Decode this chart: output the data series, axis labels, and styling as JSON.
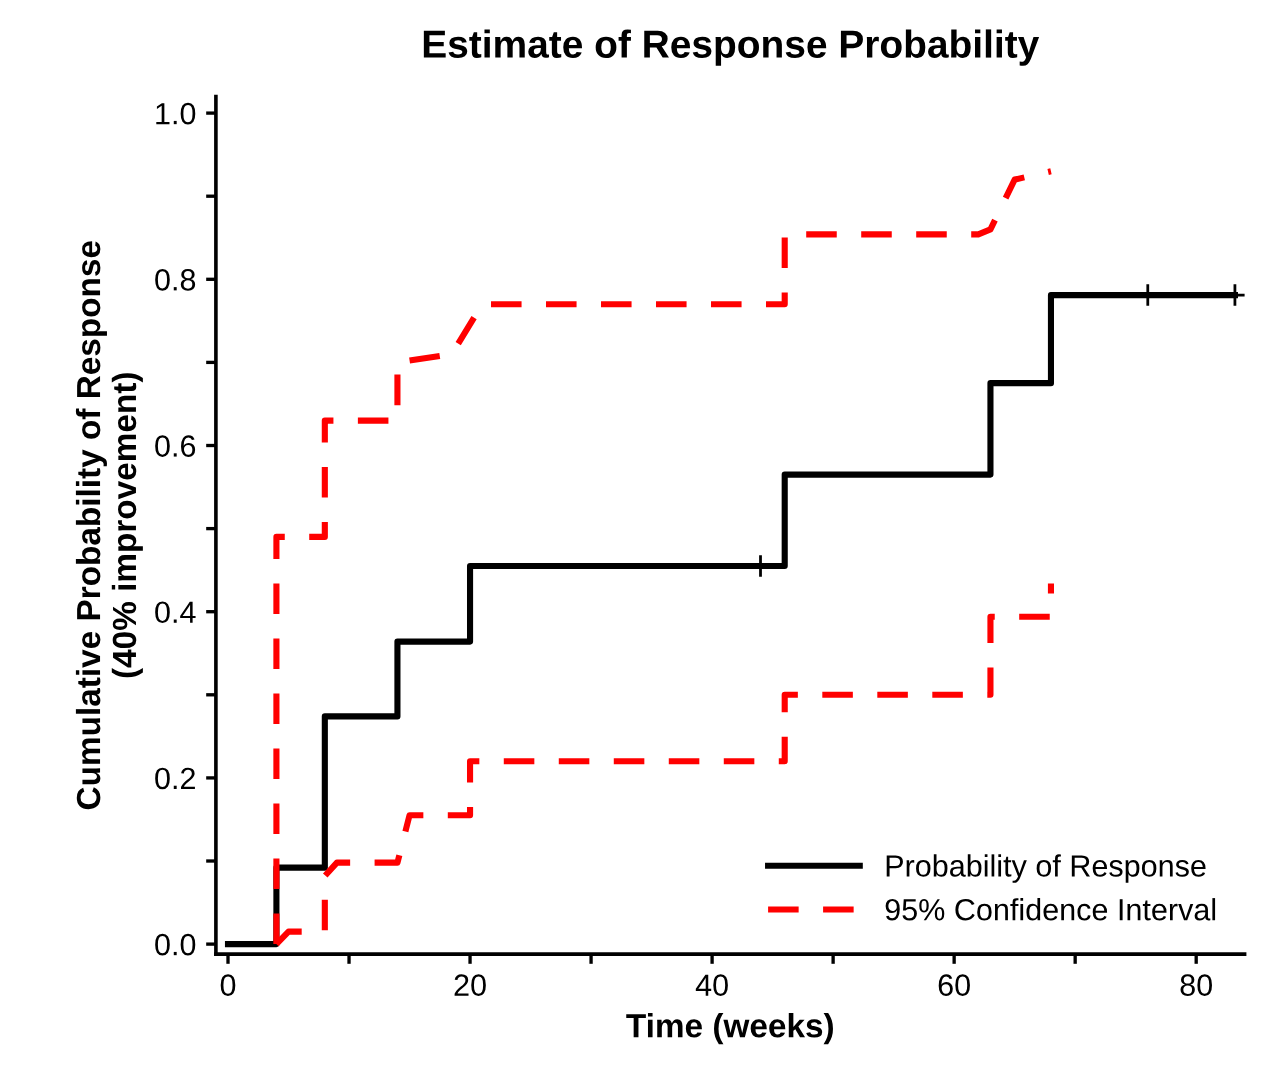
{
  "chart_data": {
    "type": "line",
    "title": "Estimate of Response Probability",
    "xlabel": "Time (weeks)",
    "ylabel": "Cumulative Probability of Response\n(40% improvement)",
    "xlim": [
      -1,
      84
    ],
    "ylim": [
      -0.012,
      1.02
    ],
    "xticks": [
      0,
      {
        "value": 10,
        "label": null
      },
      20,
      {
        "value": 30,
        "label": null
      },
      40,
      {
        "value": 50,
        "label": null
      },
      60,
      {
        "value": 70,
        "label": null
      },
      80
    ],
    "yticks": [
      {
        "value": 0,
        "label": "0.0"
      },
      {
        "value": 0.1,
        "label": null
      },
      {
        "value": 0.2,
        "label": "0.2"
      },
      {
        "value": 0.3,
        "label": null
      },
      {
        "value": 0.4,
        "label": "0.4"
      },
      {
        "value": 0.5,
        "label": null
      },
      {
        "value": 0.6,
        "label": "0.6"
      },
      {
        "value": 0.7,
        "label": null
      },
      {
        "value": 0.8,
        "label": "0.8"
      },
      {
        "value": 0.9,
        "label": null
      },
      {
        "value": 1.0,
        "label": "1.0"
      }
    ],
    "grid": false,
    "legend": "bottom right",
    "series": [
      {
        "name": "Probability of Response",
        "type": "step",
        "color": "#000000",
        "line_style": "solid",
        "x": [
          0,
          4,
          8,
          14,
          20,
          46,
          63,
          68,
          83.2
        ],
        "values": [
          0,
          0.092,
          0.274,
          0.364,
          0.455,
          0.565,
          0.675,
          0.781,
          0.781
        ]
      },
      {
        "type": "scatter",
        "color": "#000000",
        "marker": "cross",
        "x": [
          44,
          76,
          83.2
        ],
        "values": [
          0.455,
          0.781,
          0.781
        ]
      },
      {
        "name": "95% Confidence Interval",
        "color": "#ff0000",
        "line_style": "dashed",
        "x": [
          4,
          4,
          8,
          8,
          14,
          14,
          18.5,
          21,
          46,
          46,
          62,
          63,
          65,
          68
        ],
        "values": [
          0,
          0.49,
          0.49,
          0.63,
          0.63,
          0.7,
          0.71,
          0.77,
          0.77,
          0.854,
          0.854,
          0.86,
          0.92,
          0.93
        ]
      },
      {
        "color": "#ff0000",
        "line_style": "dashed",
        "x": [
          4,
          5,
          8,
          8,
          9,
          14,
          15,
          20,
          20,
          46,
          46,
          63,
          63,
          68,
          68
        ],
        "values": [
          0,
          0.015,
          0.015,
          0.082,
          0.098,
          0.098,
          0.155,
          0.155,
          0.22,
          0.22,
          0.3,
          0.3,
          0.394,
          0.394,
          0.434
        ]
      }
    ]
  }
}
